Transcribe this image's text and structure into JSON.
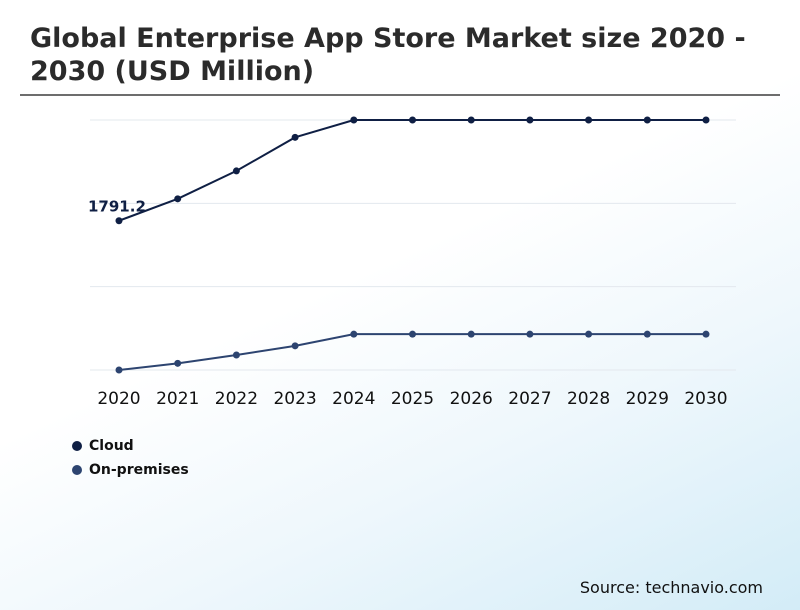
{
  "chart_data": {
    "type": "line",
    "title": "Global Enterprise App Store Market size 2020 - 2030 (USD Million)",
    "xlabel": "",
    "ylabel": "",
    "categories": [
      "2020",
      "2021",
      "2022",
      "2023",
      "2024",
      "2025",
      "2026",
      "2027",
      "2028",
      "2029",
      "2030"
    ],
    "ylim": [
      0,
      3000
    ],
    "grid": true,
    "legend_position": "bottom-left",
    "series": [
      {
        "name": "Cloud",
        "color": "#0f1f44",
        "values": [
          1791.2,
          2054,
          2389,
          2792,
          3000,
          3000,
          3000,
          3000,
          3000,
          3000,
          3000
        ]
      },
      {
        "name": "On-premises",
        "color": "#2d4470",
        "values": [
          0,
          80,
          180,
          290,
          430,
          430,
          430,
          430,
          430,
          430,
          430
        ]
      }
    ],
    "annotations": [
      {
        "series": 0,
        "index": 0,
        "text": "1791.2"
      }
    ]
  },
  "source": "Source: technavio.com"
}
